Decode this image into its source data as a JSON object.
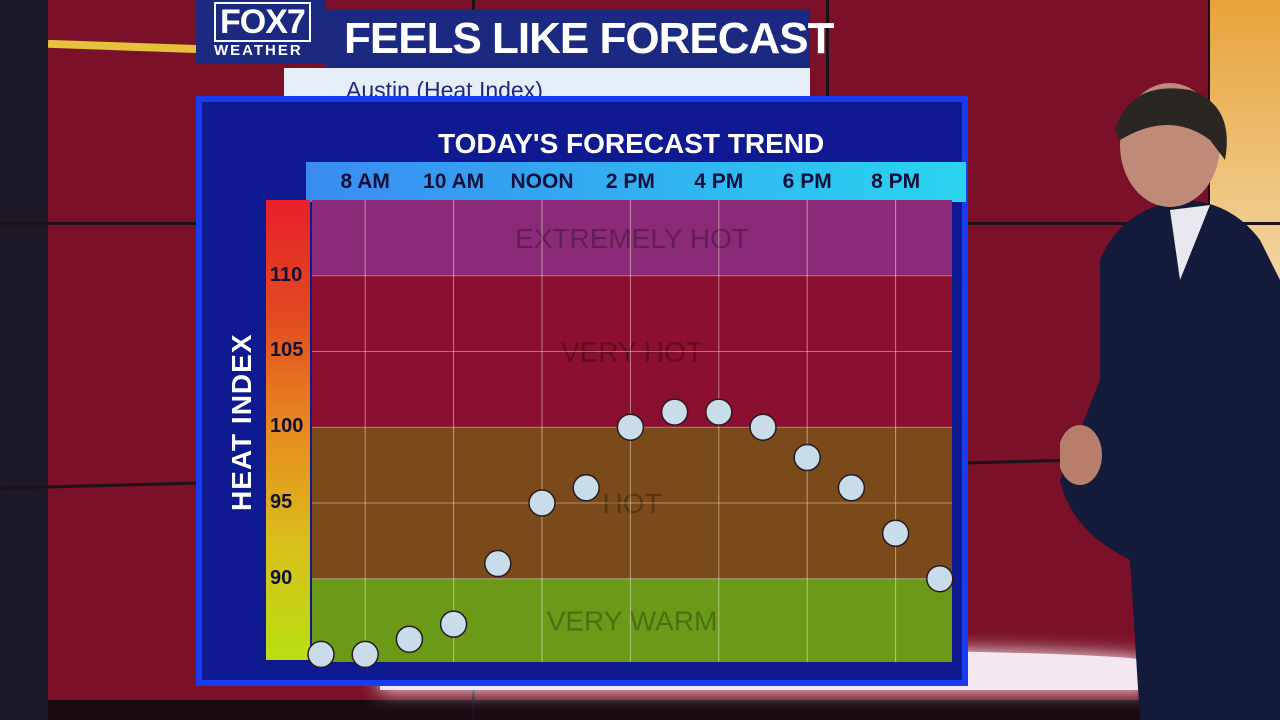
{
  "branding": {
    "logo_top": "FOX7",
    "logo_bottom": "WEATHER"
  },
  "header": {
    "title": "FEELS LIKE FORECAST",
    "subtitle": "Austin (Heat Index)"
  },
  "chart_data": {
    "type": "scatter",
    "title": "TODAY'S FORECAST TREND",
    "ylabel": "HEAT INDEX",
    "xlabel": "",
    "x_tick_labels": [
      "8 AM",
      "10 AM",
      "NOON",
      "2 PM",
      "4 PM",
      "6 PM",
      "8 PM"
    ],
    "x_tick_hours": [
      8,
      10,
      12,
      14,
      16,
      18,
      20
    ],
    "y_ticks": [
      90,
      95,
      100,
      105,
      110
    ],
    "ylim": [
      84.5,
      115
    ],
    "x": [
      "7 AM",
      "8 AM",
      "9 AM",
      "10 AM",
      "11 AM",
      "NOON",
      "1 PM",
      "2 PM",
      "3 PM",
      "4 PM",
      "5 PM",
      "6 PM",
      "7 PM",
      "8 PM",
      "9 PM"
    ],
    "x_hours": [
      7,
      8,
      9,
      10,
      11,
      12,
      13,
      14,
      15,
      16,
      17,
      18,
      19,
      20,
      21
    ],
    "values": [
      85,
      85,
      86,
      87,
      91,
      95,
      96,
      100,
      101,
      101,
      100,
      98,
      96,
      93,
      90
    ],
    "bands": [
      {
        "label": "EXTREMELY HOT",
        "from": 110,
        "to": 115,
        "color": "#8a2a78"
      },
      {
        "label": "VERY HOT",
        "from": 100,
        "to": 110,
        "color": "#8a0f30"
      },
      {
        "label": "HOT",
        "from": 90,
        "to": 100,
        "color": "#7a4a1a"
      },
      {
        "label": "VERY WARM",
        "from": 84.5,
        "to": 90,
        "color": "#6a9a18"
      }
    ],
    "grid": true,
    "marker_color": "#c8dcea"
  }
}
